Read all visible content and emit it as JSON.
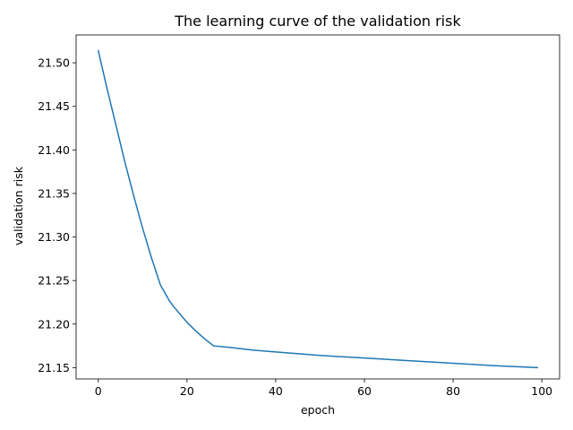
{
  "chart_data": {
    "type": "line",
    "title": "The learning curve of the validation risk",
    "xlabel": "epoch",
    "ylabel": "validation risk",
    "xlim": [
      -5,
      104
    ],
    "ylim": [
      21.137,
      21.532
    ],
    "grid": false,
    "x_ticks": [
      0,
      20,
      40,
      60,
      80,
      100
    ],
    "x_tick_labels": [
      "0",
      "20",
      "40",
      "60",
      "80",
      "100"
    ],
    "y_ticks": [
      21.15,
      21.2,
      21.25,
      21.3,
      21.35,
      21.4,
      21.45,
      21.5
    ],
    "y_tick_labels": [
      "21.15",
      "21.20",
      "21.25",
      "21.30",
      "21.35",
      "21.40",
      "21.45",
      "21.50"
    ],
    "series": [
      {
        "color": "#1f77b4",
        "x": [
          0,
          2,
          4,
          6,
          8,
          10,
          12,
          14,
          16,
          17,
          18,
          20,
          22,
          24,
          26,
          30,
          35,
          40,
          50,
          60,
          70,
          80,
          90,
          99
        ],
        "y": [
          21.514,
          21.47,
          21.428,
          21.386,
          21.347,
          21.31,
          21.276,
          21.245,
          21.227,
          21.22,
          21.214,
          21.202,
          21.192,
          21.183,
          21.175,
          21.173,
          21.17,
          21.168,
          21.164,
          21.161,
          21.158,
          21.155,
          21.152,
          21.15
        ]
      }
    ]
  }
}
